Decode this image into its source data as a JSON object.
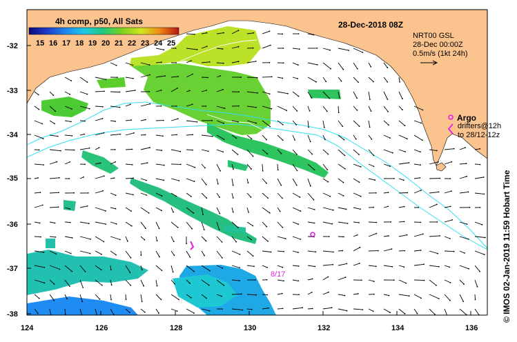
{
  "map": {
    "title": "28-Dec-2018 08Z",
    "sst_label": "4h comp, p50, All Sats",
    "colorbar_ticks": [
      "15",
      "16",
      "17",
      "18",
      "19",
      "20",
      "21",
      "22",
      "23",
      "24",
      "25"
    ],
    "product_lines": [
      "NRT00 GSL",
      "28-Dec 00:00Z",
      "0.5m/s (1kt 24h)"
    ],
    "argo_label": "Argo",
    "drifters_lines": [
      "drifters@12h",
      "to 28/12-12z"
    ],
    "float_id": "8/17",
    "credit": "© IMOS 02-Jan-2019 11:59 Hobart Time",
    "lat_ticks": [
      "-32",
      "-33",
      "-34",
      "-35",
      "-36",
      "-37",
      "-38"
    ],
    "lon_ticks": [
      "124",
      "126",
      "128",
      "130",
      "132",
      "134",
      "136"
    ],
    "colors": {
      "land": "#fbc48f",
      "argo": "#e020e0",
      "contour": "#30e0f0",
      "arrow": "#000000"
    },
    "icons": [
      "argo-float-icon",
      "drifter-arrow-icon",
      "current-arrow-icon"
    ]
  }
}
